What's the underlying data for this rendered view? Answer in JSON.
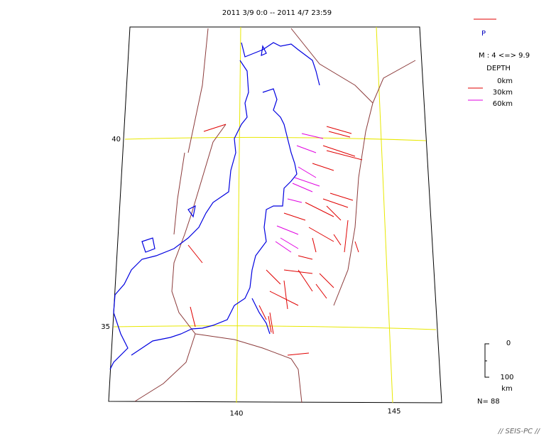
{
  "title": "2011 3/9 0:0 -- 2011 4/7 23:59",
  "legend": {
    "symbol": "P",
    "magnitude": "M : 4 <=> 9.9",
    "depth_title": "DEPTH",
    "depths": [
      "0km",
      "30km",
      "60km"
    ]
  },
  "grid_labels": {
    "latitudes": [
      "40",
      "35"
    ],
    "longitudes": [
      "140",
      "145"
    ]
  },
  "scale": {
    "top": "0",
    "bottom": "100",
    "unit": "km"
  },
  "count": "N= 88",
  "footer": "// SEIS-PC //"
}
